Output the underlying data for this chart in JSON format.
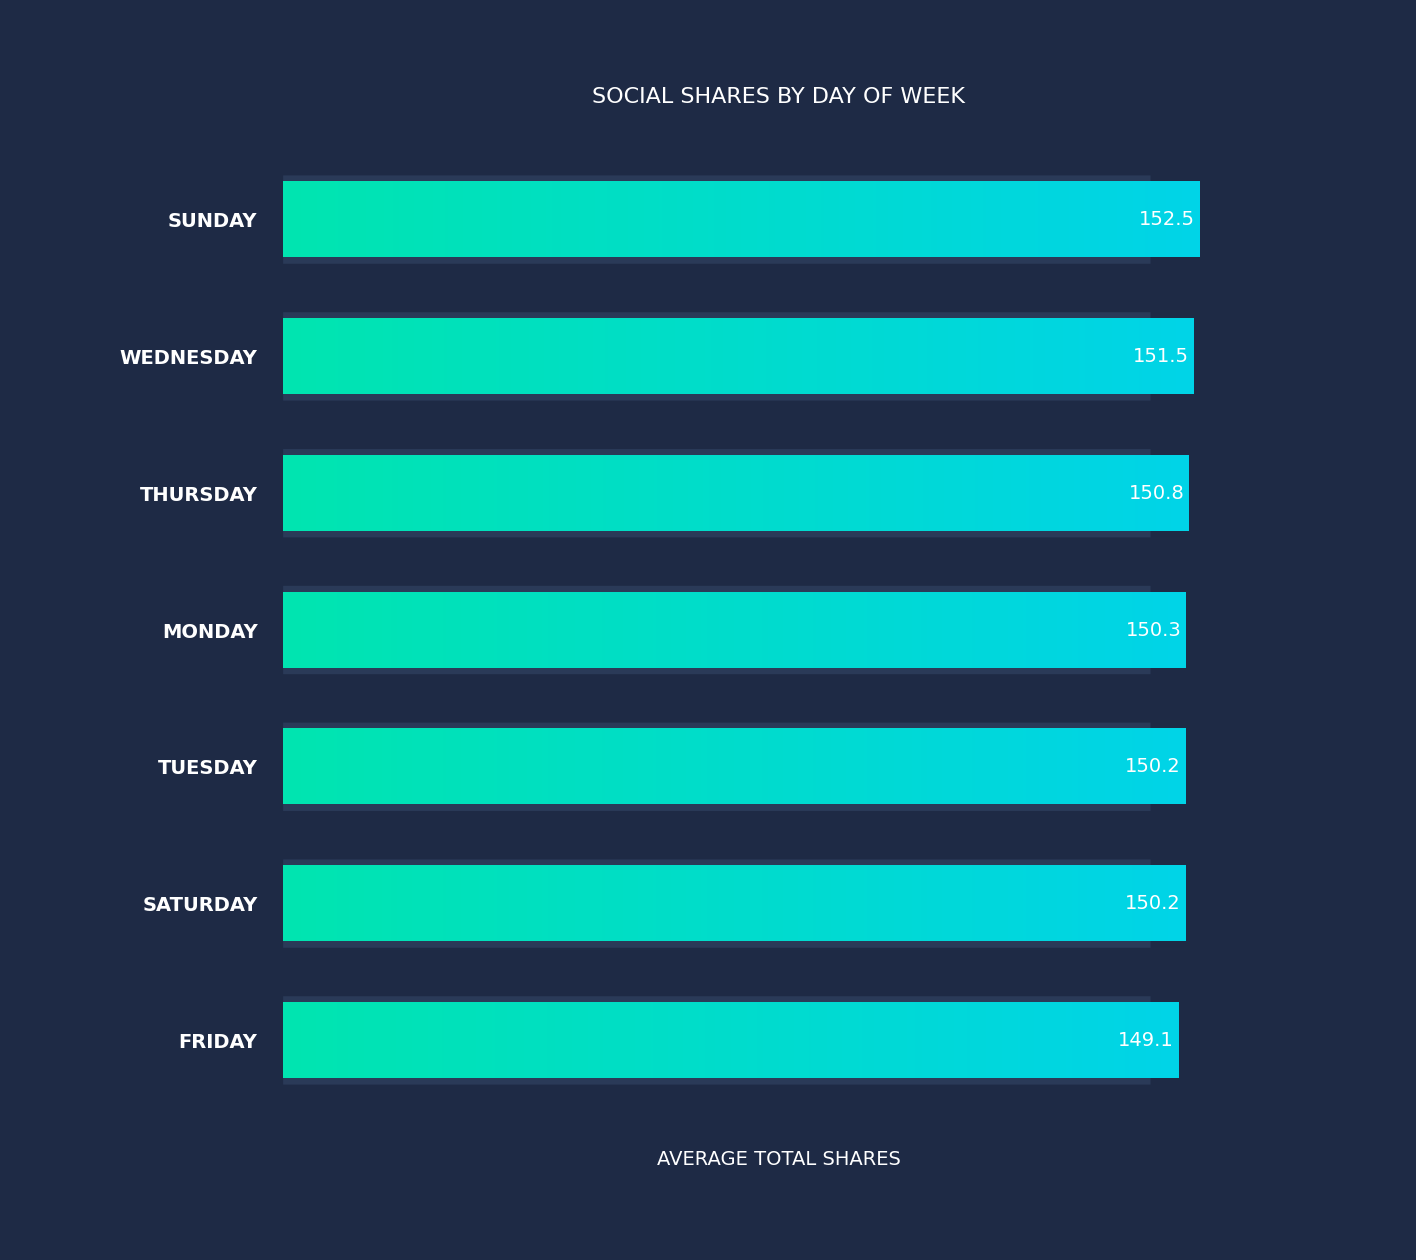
{
  "title": "SOCIAL SHARES BY DAY OF WEEK",
  "xlabel": "AVERAGE TOTAL SHARES",
  "background_color": "#1e2a45",
  "bar_color_left": "#00e5b0",
  "bar_color_right": "#00d4e8",
  "shadow_color": "#2a3a58",
  "text_color": "#ffffff",
  "categories": [
    "SUNDAY",
    "WEDNESDAY",
    "THURSDAY",
    "MONDAY",
    "TUESDAY",
    "SATURDAY",
    "FRIDAY"
  ],
  "values": [
    152.5,
    151.5,
    150.8,
    150.3,
    150.2,
    150.2,
    149.1
  ],
  "xlim_max": 165,
  "bar_height": 0.55,
  "title_fontsize": 16,
  "label_fontsize": 14,
  "value_fontsize": 14,
  "xlabel_fontsize": 14
}
